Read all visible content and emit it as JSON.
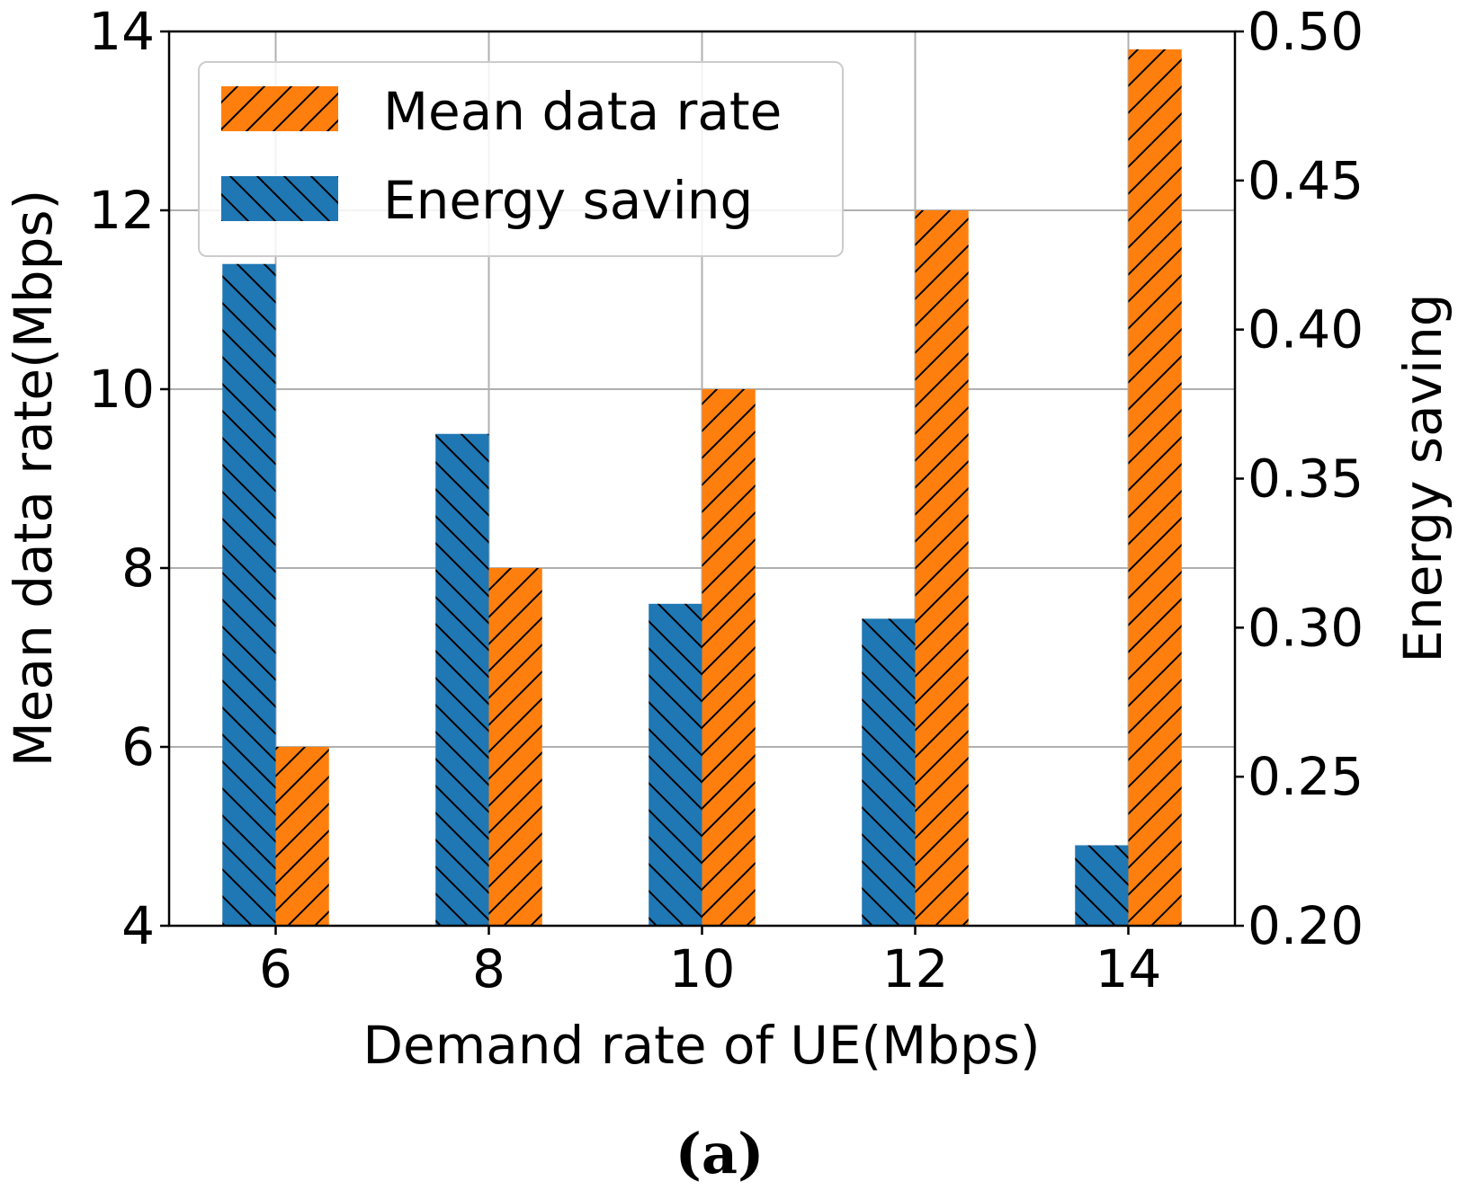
{
  "chart_data": {
    "type": "bar",
    "categories": [
      "6",
      "8",
      "10",
      "12",
      "14"
    ],
    "series": [
      {
        "name": "Energy saving",
        "axis": "right",
        "color": "#1f77b4",
        "hatch": "backslash",
        "values": [
          0.422,
          0.365,
          0.308,
          0.303,
          0.227
        ]
      },
      {
        "name": "Mean data rate",
        "axis": "left",
        "color": "#ff7f0e",
        "hatch": "slash",
        "values": [
          6,
          8,
          10,
          12,
          13.8
        ]
      }
    ],
    "xlabel": "Demand rate of UE(Mbps)",
    "ylabel_left": "Mean data rate(Mbps)",
    "ylabel_right": "Energy saving",
    "ylim_left": [
      4,
      14
    ],
    "ylim_right": [
      0.2,
      0.5
    ],
    "yticks_left": [
      "4",
      "6",
      "8",
      "10",
      "12",
      "14"
    ],
    "yticks_right": [
      "0.20",
      "0.25",
      "0.30",
      "0.35",
      "0.40",
      "0.45",
      "0.50"
    ],
    "grid": true,
    "legend_position": "top-left",
    "legend": [
      {
        "label": "Mean data rate",
        "color": "#ff7f0e",
        "hatch": "slash"
      },
      {
        "label": "Energy saving",
        "color": "#1f77b4",
        "hatch": "backslash"
      }
    ]
  },
  "caption": "(a)"
}
